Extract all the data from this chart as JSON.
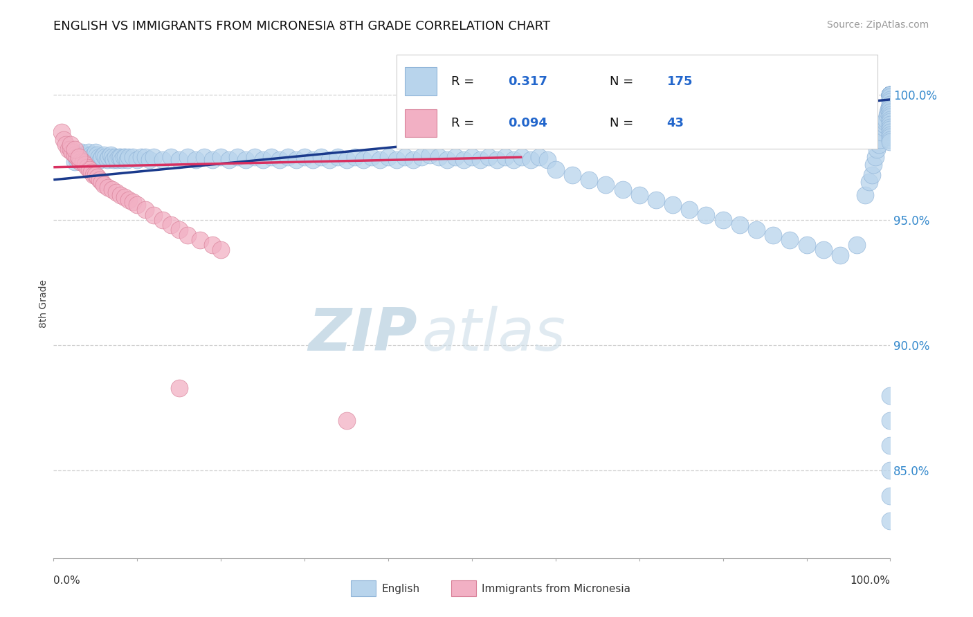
{
  "title": "ENGLISH VS IMMIGRANTS FROM MICRONESIA 8TH GRADE CORRELATION CHART",
  "source_text": "Source: ZipAtlas.com",
  "ylabel": "8th Grade",
  "y_tick_labels": [
    "85.0%",
    "90.0%",
    "95.0%",
    "100.0%"
  ],
  "y_tick_values": [
    0.85,
    0.9,
    0.95,
    1.0
  ],
  "xlim": [
    0.0,
    1.0
  ],
  "ylim": [
    0.815,
    1.018
  ],
  "legend_r_english": "0.317",
  "legend_n_english": "175",
  "legend_r_micronesia": "0.094",
  "legend_n_micronesia": "43",
  "english_color": "#b8d4ec",
  "english_edge_color": "#90b4d8",
  "micronesia_color": "#f2b0c4",
  "micronesia_edge_color": "#d88098",
  "trendline_english_color": "#1a3a8c",
  "trendline_micronesia_color": "#d83060",
  "watermark_zip": "ZIP",
  "watermark_atlas": "atlas",
  "watermark_color": "#ccdde8",
  "background_color": "#ffffff",
  "title_fontsize": 13,
  "grid_color": "#cccccc",
  "axis_value_color": "#3388cc",
  "legend_label_color": "#111111",
  "legend_value_color": "#2266cc",
  "source_color": "#999999",
  "eng_x": [
    0.025,
    0.028,
    0.03,
    0.032,
    0.034,
    0.036,
    0.038,
    0.04,
    0.042,
    0.044,
    0.046,
    0.048,
    0.05,
    0.052,
    0.054,
    0.056,
    0.058,
    0.06,
    0.062,
    0.064,
    0.066,
    0.068,
    0.07,
    0.072,
    0.074,
    0.076,
    0.078,
    0.08,
    0.082,
    0.084,
    0.086,
    0.088,
    0.09,
    0.095,
    0.1,
    0.105,
    0.11,
    0.115,
    0.12,
    0.13,
    0.14,
    0.15,
    0.16,
    0.17,
    0.18,
    0.19,
    0.2,
    0.21,
    0.22,
    0.23,
    0.24,
    0.25,
    0.26,
    0.27,
    0.28,
    0.29,
    0.3,
    0.31,
    0.32,
    0.33,
    0.34,
    0.35,
    0.36,
    0.37,
    0.38,
    0.39,
    0.4,
    0.41,
    0.42,
    0.43,
    0.44,
    0.45,
    0.46,
    0.47,
    0.48,
    0.49,
    0.5,
    0.51,
    0.52,
    0.53,
    0.54,
    0.55,
    0.56,
    0.57,
    0.58,
    0.59,
    0.6,
    0.62,
    0.64,
    0.66,
    0.68,
    0.7,
    0.72,
    0.74,
    0.76,
    0.78,
    0.8,
    0.82,
    0.84,
    0.86,
    0.88,
    0.9,
    0.92,
    0.94,
    0.96,
    0.97,
    0.975,
    0.978,
    0.98,
    0.982,
    0.984,
    0.986,
    0.988,
    0.99,
    0.992,
    0.993,
    0.994,
    0.995,
    0.996,
    0.997,
    0.998,
    0.999,
    1.0,
    1.0,
    1.0,
    1.0,
    1.0,
    1.0,
    1.0,
    1.0,
    1.0,
    1.0,
    1.0,
    1.0,
    1.0,
    1.0,
    1.0,
    1.0,
    1.0,
    1.0,
    1.0,
    1.0,
    1.0,
    1.0,
    1.0,
    1.0,
    1.0,
    1.0,
    1.0,
    1.0,
    1.0,
    1.0,
    1.0,
    1.0,
    1.0,
    1.0,
    1.0,
    1.0,
    1.0,
    1.0,
    1.0,
    1.0,
    1.0,
    1.0,
    1.0
  ],
  "eng_y": [
    0.973,
    0.974,
    0.975,
    0.976,
    0.977,
    0.976,
    0.975,
    0.976,
    0.977,
    0.976,
    0.975,
    0.976,
    0.977,
    0.976,
    0.975,
    0.974,
    0.975,
    0.976,
    0.975,
    0.974,
    0.975,
    0.976,
    0.975,
    0.974,
    0.975,
    0.974,
    0.975,
    0.975,
    0.974,
    0.975,
    0.975,
    0.974,
    0.975,
    0.975,
    0.974,
    0.975,
    0.975,
    0.974,
    0.975,
    0.974,
    0.975,
    0.974,
    0.975,
    0.974,
    0.975,
    0.974,
    0.975,
    0.974,
    0.975,
    0.974,
    0.975,
    0.974,
    0.975,
    0.974,
    0.975,
    0.974,
    0.975,
    0.974,
    0.975,
    0.974,
    0.975,
    0.974,
    0.975,
    0.974,
    0.975,
    0.974,
    0.975,
    0.974,
    0.975,
    0.974,
    0.975,
    0.976,
    0.975,
    0.974,
    0.975,
    0.974,
    0.975,
    0.974,
    0.975,
    0.974,
    0.975,
    0.974,
    0.975,
    0.974,
    0.975,
    0.974,
    0.97,
    0.968,
    0.966,
    0.964,
    0.962,
    0.96,
    0.958,
    0.956,
    0.954,
    0.952,
    0.95,
    0.948,
    0.946,
    0.944,
    0.942,
    0.94,
    0.938,
    0.936,
    0.94,
    0.96,
    0.965,
    0.968,
    0.972,
    0.975,
    0.978,
    0.98,
    0.982,
    0.985,
    0.987,
    0.988,
    0.989,
    0.99,
    0.992,
    0.993,
    0.994,
    0.995,
    0.998,
    0.999,
    1.0,
    1.0,
    1.0,
    1.0,
    1.0,
    1.0,
    1.0,
    1.0,
    1.0,
    1.0,
    1.0,
    1.0,
    1.0,
    1.0,
    1.0,
    1.0,
    0.999,
    0.998,
    0.997,
    0.996,
    0.995,
    0.994,
    0.993,
    0.992,
    0.991,
    0.99,
    0.989,
    0.988,
    0.987,
    0.986,
    0.985,
    0.984,
    0.983,
    0.982,
    0.981,
    0.88,
    0.87,
    0.86,
    0.85,
    0.84,
    0.83
  ],
  "mic_x": [
    0.01,
    0.012,
    0.015,
    0.018,
    0.02,
    0.022,
    0.025,
    0.028,
    0.03,
    0.032,
    0.035,
    0.038,
    0.04,
    0.043,
    0.045,
    0.048,
    0.05,
    0.053,
    0.055,
    0.058,
    0.06,
    0.065,
    0.07,
    0.075,
    0.08,
    0.085,
    0.09,
    0.095,
    0.1,
    0.11,
    0.12,
    0.13,
    0.14,
    0.15,
    0.16,
    0.175,
    0.19,
    0.2,
    0.02,
    0.025,
    0.03,
    0.35,
    0.15
  ],
  "mic_y": [
    0.985,
    0.982,
    0.98,
    0.978,
    0.978,
    0.977,
    0.976,
    0.975,
    0.974,
    0.973,
    0.973,
    0.972,
    0.971,
    0.97,
    0.969,
    0.968,
    0.968,
    0.967,
    0.966,
    0.965,
    0.964,
    0.963,
    0.962,
    0.961,
    0.96,
    0.959,
    0.958,
    0.957,
    0.956,
    0.954,
    0.952,
    0.95,
    0.948,
    0.946,
    0.944,
    0.942,
    0.94,
    0.938,
    0.98,
    0.978,
    0.975,
    0.87,
    0.883
  ]
}
